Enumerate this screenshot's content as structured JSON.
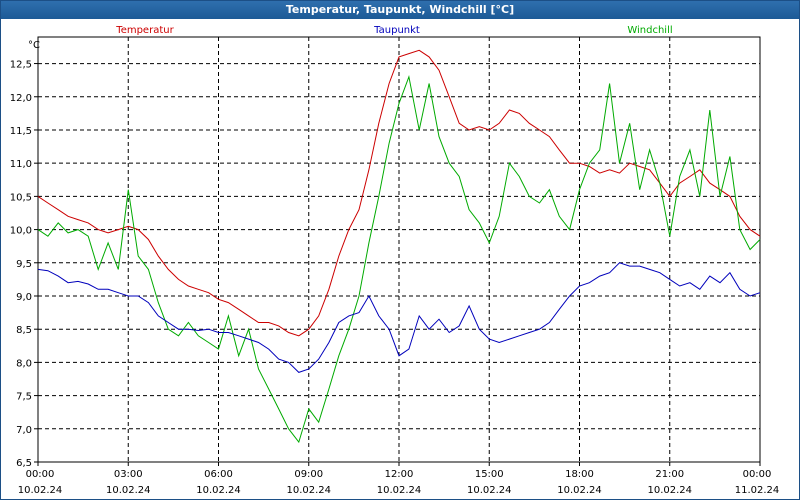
{
  "window": {
    "title": "Temperatur, Taupunkt, Windchill [°C]"
  },
  "chart_data": {
    "type": "line",
    "title": "Temperatur, Taupunkt, Windchill [°C]",
    "ylabel": "°C",
    "ylim": [
      6.5,
      12.9
    ],
    "xlim": [
      0,
      24
    ],
    "yticks": [
      6.5,
      7.0,
      7.5,
      8.0,
      8.5,
      9.0,
      9.5,
      10.0,
      10.5,
      11.0,
      11.5,
      12.0,
      12.5
    ],
    "ytick_labels": [
      "6,5",
      "7,0",
      "7,5",
      "8,0",
      "8,5",
      "9,0",
      "9,5",
      "10,0",
      "10,5",
      "11,0",
      "11,5",
      "12,0",
      "12,5"
    ],
    "xticks": [
      {
        "x": 0,
        "time": "00:00",
        "date": "10.02.24"
      },
      {
        "x": 3,
        "time": "03:00",
        "date": "10.02.24"
      },
      {
        "x": 6,
        "time": "06:00",
        "date": "10.02.24"
      },
      {
        "x": 9,
        "time": "09:00",
        "date": "10.02.24"
      },
      {
        "x": 12,
        "time": "12:00",
        "date": "10.02.24"
      },
      {
        "x": 15,
        "time": "15:00",
        "date": "10.02.24"
      },
      {
        "x": 18,
        "time": "18:00",
        "date": "10.02.24"
      },
      {
        "x": 21,
        "time": "21:00",
        "date": "10.02.24"
      },
      {
        "x": 24,
        "time": "00:00",
        "date": "11.02.24"
      }
    ],
    "grid": true,
    "legend_position": "top",
    "series": [
      {
        "name": "Temperatur",
        "color": "#cc0000",
        "points": [
          [
            0.0,
            10.5
          ],
          [
            0.33,
            10.4
          ],
          [
            0.67,
            10.3
          ],
          [
            1.0,
            10.2
          ],
          [
            1.33,
            10.15
          ],
          [
            1.67,
            10.1
          ],
          [
            2.0,
            10.0
          ],
          [
            2.33,
            9.95
          ],
          [
            2.67,
            10.0
          ],
          [
            3.0,
            10.05
          ],
          [
            3.33,
            10.0
          ],
          [
            3.67,
            9.85
          ],
          [
            4.0,
            9.6
          ],
          [
            4.33,
            9.4
          ],
          [
            4.67,
            9.25
          ],
          [
            5.0,
            9.15
          ],
          [
            5.33,
            9.1
          ],
          [
            5.67,
            9.05
          ],
          [
            6.0,
            8.95
          ],
          [
            6.33,
            8.9
          ],
          [
            6.67,
            8.8
          ],
          [
            7.0,
            8.7
          ],
          [
            7.33,
            8.6
          ],
          [
            7.67,
            8.6
          ],
          [
            8.0,
            8.55
          ],
          [
            8.33,
            8.45
          ],
          [
            8.67,
            8.4
          ],
          [
            9.0,
            8.5
          ],
          [
            9.33,
            8.7
          ],
          [
            9.67,
            9.1
          ],
          [
            10.0,
            9.6
          ],
          [
            10.33,
            10.0
          ],
          [
            10.67,
            10.3
          ],
          [
            11.0,
            10.9
          ],
          [
            11.33,
            11.6
          ],
          [
            11.67,
            12.2
          ],
          [
            12.0,
            12.6
          ],
          [
            12.33,
            12.65
          ],
          [
            12.67,
            12.7
          ],
          [
            13.0,
            12.6
          ],
          [
            13.33,
            12.4
          ],
          [
            13.67,
            12.0
          ],
          [
            14.0,
            11.6
          ],
          [
            14.33,
            11.5
          ],
          [
            14.67,
            11.55
          ],
          [
            15.0,
            11.5
          ],
          [
            15.33,
            11.6
          ],
          [
            15.67,
            11.8
          ],
          [
            16.0,
            11.75
          ],
          [
            16.33,
            11.6
          ],
          [
            16.67,
            11.5
          ],
          [
            17.0,
            11.4
          ],
          [
            17.33,
            11.2
          ],
          [
            17.67,
            11.0
          ],
          [
            18.0,
            11.0
          ],
          [
            18.33,
            10.95
          ],
          [
            18.67,
            10.85
          ],
          [
            19.0,
            10.9
          ],
          [
            19.33,
            10.85
          ],
          [
            19.67,
            11.0
          ],
          [
            20.0,
            10.95
          ],
          [
            20.33,
            10.9
          ],
          [
            20.67,
            10.7
          ],
          [
            21.0,
            10.5
          ],
          [
            21.33,
            10.7
          ],
          [
            21.67,
            10.8
          ],
          [
            22.0,
            10.9
          ],
          [
            22.33,
            10.7
          ],
          [
            22.67,
            10.6
          ],
          [
            23.0,
            10.5
          ],
          [
            23.33,
            10.2
          ],
          [
            23.67,
            10.0
          ],
          [
            24.0,
            9.9
          ]
        ]
      },
      {
        "name": "Taupunkt",
        "color": "#0000bb",
        "points": [
          [
            0.0,
            9.4
          ],
          [
            0.33,
            9.38
          ],
          [
            0.67,
            9.3
          ],
          [
            1.0,
            9.2
          ],
          [
            1.33,
            9.22
          ],
          [
            1.67,
            9.18
          ],
          [
            2.0,
            9.1
          ],
          [
            2.33,
            9.1
          ],
          [
            2.67,
            9.05
          ],
          [
            3.0,
            9.0
          ],
          [
            3.33,
            9.0
          ],
          [
            3.67,
            8.9
          ],
          [
            4.0,
            8.7
          ],
          [
            4.33,
            8.6
          ],
          [
            4.67,
            8.5
          ],
          [
            5.0,
            8.5
          ],
          [
            5.33,
            8.48
          ],
          [
            5.67,
            8.5
          ],
          [
            6.0,
            8.45
          ],
          [
            6.33,
            8.45
          ],
          [
            6.67,
            8.4
          ],
          [
            7.0,
            8.35
          ],
          [
            7.33,
            8.3
          ],
          [
            7.67,
            8.2
          ],
          [
            8.0,
            8.05
          ],
          [
            8.33,
            8.0
          ],
          [
            8.67,
            7.85
          ],
          [
            9.0,
            7.9
          ],
          [
            9.33,
            8.05
          ],
          [
            9.67,
            8.3
          ],
          [
            10.0,
            8.6
          ],
          [
            10.33,
            8.7
          ],
          [
            10.67,
            8.75
          ],
          [
            11.0,
            9.0
          ],
          [
            11.33,
            8.7
          ],
          [
            11.67,
            8.5
          ],
          [
            12.0,
            8.1
          ],
          [
            12.33,
            8.2
          ],
          [
            12.67,
            8.7
          ],
          [
            13.0,
            8.5
          ],
          [
            13.33,
            8.65
          ],
          [
            13.67,
            8.45
          ],
          [
            14.0,
            8.55
          ],
          [
            14.33,
            8.85
          ],
          [
            14.67,
            8.5
          ],
          [
            15.0,
            8.35
          ],
          [
            15.33,
            8.3
          ],
          [
            15.67,
            8.35
          ],
          [
            16.0,
            8.4
          ],
          [
            16.33,
            8.45
          ],
          [
            16.67,
            8.5
          ],
          [
            17.0,
            8.6
          ],
          [
            17.33,
            8.8
          ],
          [
            17.67,
            9.0
          ],
          [
            18.0,
            9.15
          ],
          [
            18.33,
            9.2
          ],
          [
            18.67,
            9.3
          ],
          [
            19.0,
            9.35
          ],
          [
            19.33,
            9.5
          ],
          [
            19.67,
            9.45
          ],
          [
            20.0,
            9.45
          ],
          [
            20.33,
            9.4
          ],
          [
            20.67,
            9.35
          ],
          [
            21.0,
            9.25
          ],
          [
            21.33,
            9.15
          ],
          [
            21.67,
            9.2
          ],
          [
            22.0,
            9.1
          ],
          [
            22.33,
            9.3
          ],
          [
            22.67,
            9.2
          ],
          [
            23.0,
            9.35
          ],
          [
            23.33,
            9.1
          ],
          [
            23.67,
            9.0
          ],
          [
            24.0,
            9.05
          ]
        ]
      },
      {
        "name": "Windchill",
        "color": "#00aa00",
        "points": [
          [
            0.0,
            10.0
          ],
          [
            0.33,
            9.9
          ],
          [
            0.67,
            10.1
          ],
          [
            1.0,
            9.95
          ],
          [
            1.33,
            10.0
          ],
          [
            1.67,
            9.9
          ],
          [
            2.0,
            9.4
          ],
          [
            2.33,
            9.8
          ],
          [
            2.67,
            9.4
          ],
          [
            3.0,
            10.6
          ],
          [
            3.33,
            9.6
          ],
          [
            3.67,
            9.4
          ],
          [
            4.0,
            8.9
          ],
          [
            4.33,
            8.5
          ],
          [
            4.67,
            8.4
          ],
          [
            5.0,
            8.6
          ],
          [
            5.33,
            8.4
          ],
          [
            5.67,
            8.3
          ],
          [
            6.0,
            8.2
          ],
          [
            6.33,
            8.7
          ],
          [
            6.67,
            8.1
          ],
          [
            7.0,
            8.5
          ],
          [
            7.33,
            7.9
          ],
          [
            7.67,
            7.6
          ],
          [
            8.0,
            7.3
          ],
          [
            8.33,
            7.0
          ],
          [
            8.67,
            6.8
          ],
          [
            9.0,
            7.3
          ],
          [
            9.33,
            7.1
          ],
          [
            9.67,
            7.6
          ],
          [
            10.0,
            8.1
          ],
          [
            10.33,
            8.5
          ],
          [
            10.67,
            9.0
          ],
          [
            11.0,
            9.8
          ],
          [
            11.33,
            10.5
          ],
          [
            11.67,
            11.3
          ],
          [
            12.0,
            11.9
          ],
          [
            12.33,
            12.3
          ],
          [
            12.67,
            11.5
          ],
          [
            13.0,
            12.2
          ],
          [
            13.33,
            11.4
          ],
          [
            13.67,
            11.0
          ],
          [
            14.0,
            10.8
          ],
          [
            14.33,
            10.3
          ],
          [
            14.67,
            10.1
          ],
          [
            15.0,
            9.8
          ],
          [
            15.33,
            10.2
          ],
          [
            15.67,
            11.0
          ],
          [
            16.0,
            10.8
          ],
          [
            16.33,
            10.5
          ],
          [
            16.67,
            10.4
          ],
          [
            17.0,
            10.6
          ],
          [
            17.33,
            10.2
          ],
          [
            17.67,
            10.0
          ],
          [
            18.0,
            10.6
          ],
          [
            18.33,
            11.0
          ],
          [
            18.67,
            11.2
          ],
          [
            19.0,
            12.2
          ],
          [
            19.33,
            11.0
          ],
          [
            19.67,
            11.6
          ],
          [
            20.0,
            10.6
          ],
          [
            20.33,
            11.2
          ],
          [
            20.67,
            10.7
          ],
          [
            21.0,
            9.9
          ],
          [
            21.33,
            10.8
          ],
          [
            21.67,
            11.2
          ],
          [
            22.0,
            10.5
          ],
          [
            22.33,
            11.8
          ],
          [
            22.67,
            10.5
          ],
          [
            23.0,
            11.1
          ],
          [
            23.33,
            10.0
          ],
          [
            23.67,
            9.7
          ],
          [
            24.0,
            9.85
          ]
        ]
      }
    ]
  }
}
